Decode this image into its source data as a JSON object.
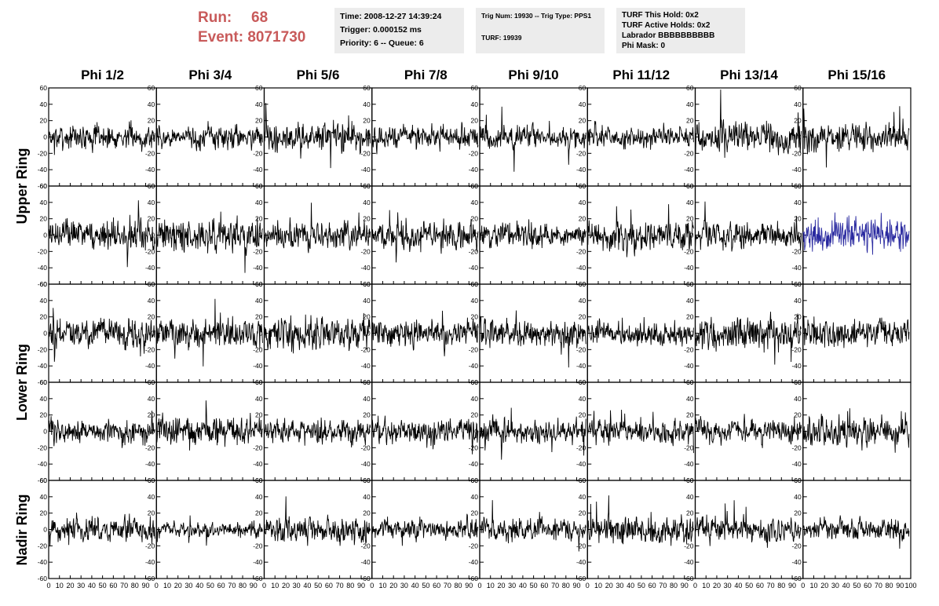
{
  "header": {
    "run_label": "Run:",
    "run_value": "68",
    "event_label": "Event:",
    "event_value": "8071730"
  },
  "info_time": {
    "line1": "Time: 2008-12-27 14:39:24",
    "line2": "Trigger: 0.000152 ms",
    "line3": "Priority: 6 -- Queue: 6"
  },
  "info_trig": {
    "line1": "Trig Num: 19930 -- Trig Type: PPS1",
    "line2": "TURF: 19939"
  },
  "info_turf": {
    "line1": "TURF This Hold: 0x2",
    "line2": "TURF Active Holds: 0x2",
    "line3": "Labrador BBBBBBBBBB",
    "line4": "Phi Mask: 0"
  },
  "columns": [
    "Phi 1/2",
    "Phi 3/4",
    "Phi 5/6",
    "Phi 7/8",
    "Phi 9/10",
    "Phi 11/12",
    "Phi 13/14",
    "Phi 15/16"
  ],
  "ring_groups": [
    {
      "label": "Upper Ring",
      "rows": [
        0,
        1
      ]
    },
    {
      "label": "Lower Ring",
      "rows": [
        2,
        3
      ]
    },
    {
      "label": "Nadir Ring",
      "rows": [
        4
      ]
    }
  ],
  "colors": {
    "trace": "#000000",
    "highlight_trace": "#2a2aa0",
    "run_text": "#c85a5a",
    "info_bg": "#ececec"
  },
  "chart_data": {
    "type": "line",
    "rows": 5,
    "cols": 8,
    "xlim": [
      0,
      100
    ],
    "ylim": [
      -60,
      60
    ],
    "x_ticks": [
      0,
      10,
      20,
      30,
      40,
      50,
      60,
      70,
      80,
      90,
      100
    ],
    "y_ticks": [
      -60,
      -40,
      -20,
      0,
      20,
      40,
      60
    ],
    "samples_per_trace": 260,
    "highlighted_panel": {
      "row": 1,
      "col": 7
    },
    "panel_amplitude": [
      [
        12,
        11,
        14,
        11,
        13,
        11,
        15,
        14
      ],
      [
        14,
        16,
        13,
        14,
        12,
        15,
        14,
        16
      ],
      [
        15,
        14,
        16,
        14,
        14,
        12,
        17,
        15
      ],
      [
        12,
        14,
        13,
        13,
        12,
        12,
        12,
        14
      ],
      [
        12,
        8,
        13,
        10,
        11,
        13,
        12,
        11
      ]
    ]
  }
}
